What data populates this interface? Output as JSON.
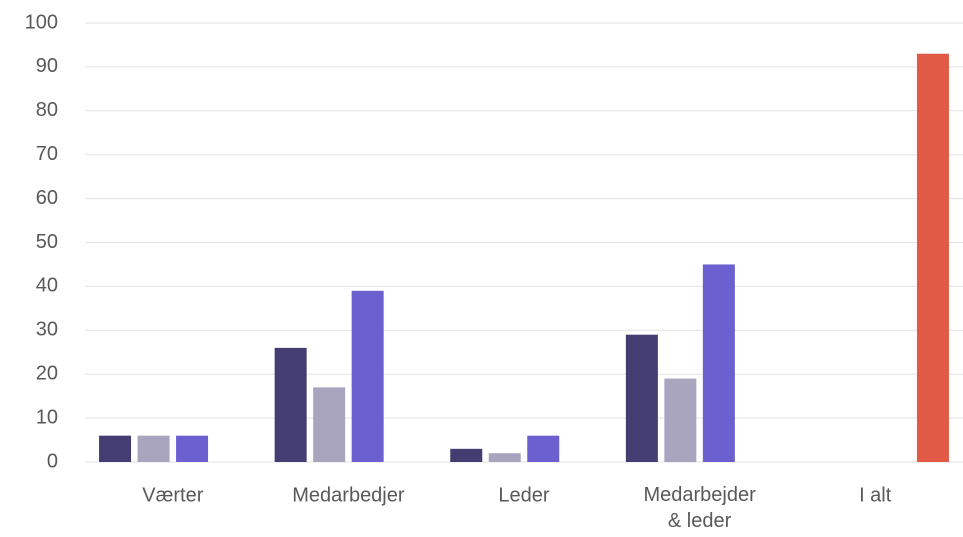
{
  "chart_data": {
    "type": "bar",
    "categories": [
      "Værter",
      "Medarbedjer",
      "Leder",
      "Medarbejder\n& leder",
      "I alt"
    ],
    "series": [
      {
        "color": "#433d72",
        "values": [
          6,
          26,
          3,
          29,
          null
        ]
      },
      {
        "color": "#a9a5bf",
        "values": [
          6,
          17,
          2,
          19,
          null
        ]
      },
      {
        "color": "#6c60d0",
        "values": [
          6,
          39,
          6,
          45,
          null
        ]
      },
      {
        "color": "#e05a45",
        "values": [
          null,
          null,
          null,
          null,
          93
        ]
      }
    ],
    "ylim": [
      0,
      100
    ],
    "yticks": [
      0,
      10,
      20,
      30,
      40,
      50,
      60,
      70,
      80,
      90,
      100
    ],
    "grid": true
  }
}
